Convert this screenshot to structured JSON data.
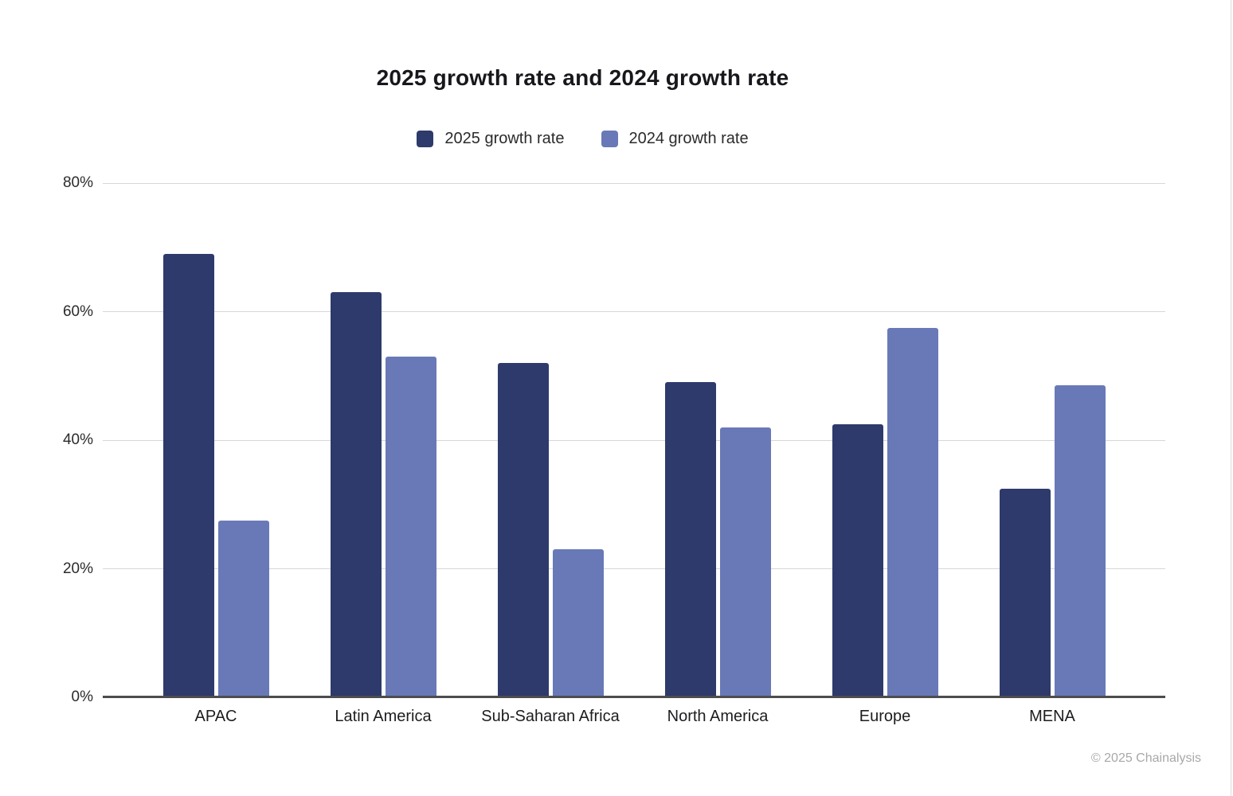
{
  "title": "2025 growth rate and 2024 growth rate",
  "footer": "© 2025 Chainalysis",
  "colors": {
    "series_2025": "#2D3A6B",
    "series_2024": "#6979B8",
    "gridline": "#d7d7d7",
    "axis_line": "#4d4d4d",
    "text": "#2b2b2e",
    "footer_text": "#a8a8a8"
  },
  "legend": {
    "items": [
      {
        "label": "2025 growth rate",
        "color": "#2D3A6B"
      },
      {
        "label": "2024 growth rate",
        "color": "#6979B8"
      }
    ],
    "position": "top-center"
  },
  "chart_data": {
    "type": "bar",
    "title": "2025 growth rate and 2024 growth rate",
    "categories": [
      "APAC",
      "Latin America",
      "Sub-Saharan Africa",
      "North America",
      "Europe",
      "MENA"
    ],
    "series": [
      {
        "name": "2025 growth rate",
        "color": "#2D3A6B",
        "values": [
          69,
          63,
          52,
          49,
          42.5,
          32.5
        ]
      },
      {
        "name": "2024 growth rate",
        "color": "#6979B8",
        "values": [
          27.5,
          53,
          23,
          42,
          57.5,
          48.5
        ]
      }
    ],
    "xlabel": "",
    "ylabel": "",
    "ylim": [
      0,
      80
    ],
    "y_ticks": [
      0,
      20,
      40,
      60,
      80
    ],
    "y_tick_labels": [
      "0%",
      "20%",
      "40%",
      "60%",
      "80%"
    ],
    "grid": true,
    "legend_position": "top"
  }
}
